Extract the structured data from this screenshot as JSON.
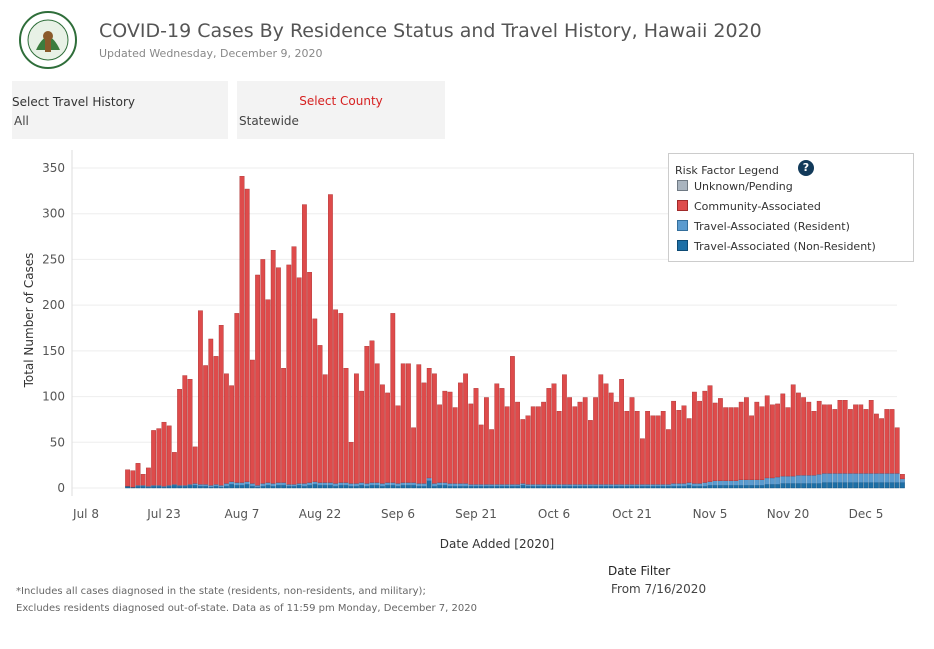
{
  "header": {
    "logo_alt": "Hawaii State Department of Health",
    "title": "COVID-19 Cases By Residence Status and Travel History, Hawaii 2020",
    "subtitle": "Updated Wednesday, December 9, 2020"
  },
  "filters": {
    "travel_label": "Select Travel History",
    "travel_value": "All",
    "county_label": "Select County",
    "county_value": "Statewide"
  },
  "legend": {
    "title": "Risk Factor Legend",
    "help": "?",
    "items": [
      {
        "label": "Unknown/Pending",
        "color": "#a9b4bf"
      },
      {
        "label": "Community-Associated",
        "color": "#de4b4b"
      },
      {
        "label": "Travel-Associated (Resident)",
        "color": "#5b9bcf"
      },
      {
        "label": "Travel-Associated (Non-Resident)",
        "color": "#1d6fa6"
      }
    ]
  },
  "date_filter": {
    "label": "Date Filter",
    "value": "From 7/16/2020"
  },
  "footnotes": [
    "*Includes all cases diagnosed in the state (residents, non-residents, and military);",
    "Excludes residents diagnosed out-of-state. Data as of 11:59 pm Monday, December 7, 2020"
  ],
  "chart_data": {
    "type": "bar",
    "stacked": true,
    "title": "",
    "xlabel": "Date Added [2020]",
    "ylabel": "Total Number of Cases",
    "ylim": [
      0,
      350
    ],
    "yticks": [
      0,
      50,
      100,
      150,
      200,
      250,
      300,
      350
    ],
    "xticks": [
      {
        "label": "Jul 8",
        "day": 0
      },
      {
        "label": "Jul 23",
        "day": 15
      },
      {
        "label": "Aug 7",
        "day": 30
      },
      {
        "label": "Aug 22",
        "day": 45
      },
      {
        "label": "Sep 6",
        "day": 60
      },
      {
        "label": "Sep 21",
        "day": 75
      },
      {
        "label": "Oct 6",
        "day": 90
      },
      {
        "label": "Oct 21",
        "day": 105
      },
      {
        "label": "Nov 5",
        "day": 120
      },
      {
        "label": "Nov 20",
        "day": 135
      },
      {
        "label": "Dec 5",
        "day": 150
      }
    ],
    "start_date": "Jul 16",
    "colors": {
      "non_resident": "#1d6fa6",
      "resident": "#5b9bcf",
      "community": "#de4b4b",
      "unknown": "#a9b4bf"
    },
    "series": [
      {
        "name": "Travel-Associated (Non-Resident)",
        "values": [
          2,
          1,
          2,
          2,
          1,
          2,
          2,
          1,
          2,
          3,
          2,
          2,
          3,
          3,
          2,
          2,
          1,
          2,
          1,
          2,
          4,
          3,
          3,
          4,
          2,
          1,
          2,
          3,
          2,
          3,
          3,
          2,
          2,
          3,
          2,
          3,
          4,
          3,
          3,
          3,
          2,
          3,
          3,
          2,
          2,
          3,
          2,
          3,
          3,
          2,
          3,
          3,
          2,
          3,
          3,
          3,
          2,
          2,
          8,
          2,
          3,
          3,
          2,
          2,
          2,
          2,
          2,
          2,
          2,
          2,
          2,
          2,
          2,
          2,
          2,
          2,
          3,
          2,
          2,
          2,
          2,
          2,
          2,
          2,
          2,
          2,
          2,
          2,
          2,
          2,
          2,
          2,
          2,
          2,
          2,
          2,
          2,
          2,
          2,
          2,
          2,
          2,
          2,
          2,
          2,
          2,
          2,
          2,
          3,
          2,
          2,
          2,
          3,
          3,
          3,
          3,
          3,
          3,
          3,
          3,
          3,
          3,
          3,
          4,
          4,
          4,
          5,
          5,
          5,
          5,
          5,
          5,
          5,
          5,
          6,
          6,
          6,
          6,
          6,
          6,
          6,
          6,
          6,
          6,
          6,
          6,
          6,
          6,
          6,
          6
        ]
      },
      {
        "name": "Travel-Associated (Resident)",
        "values": [
          0,
          0,
          1,
          1,
          1,
          1,
          1,
          1,
          1,
          1,
          1,
          1,
          1,
          2,
          2,
          2,
          2,
          2,
          2,
          3,
          3,
          3,
          3,
          3,
          3,
          2,
          3,
          3,
          3,
          3,
          3,
          2,
          2,
          2,
          3,
          3,
          3,
          3,
          3,
          3,
          3,
          3,
          3,
          3,
          3,
          3,
          3,
          3,
          3,
          3,
          3,
          3,
          3,
          3,
          3,
          3,
          3,
          3,
          3,
          3,
          3,
          3,
          3,
          3,
          3,
          3,
          2,
          2,
          2,
          2,
          2,
          2,
          2,
          2,
          2,
          2,
          2,
          2,
          2,
          2,
          2,
          2,
          2,
          2,
          2,
          2,
          2,
          2,
          2,
          2,
          2,
          2,
          2,
          2,
          2,
          2,
          2,
          2,
          2,
          2,
          2,
          2,
          2,
          2,
          2,
          3,
          3,
          3,
          3,
          3,
          3,
          4,
          4,
          5,
          5,
          5,
          5,
          5,
          6,
          6,
          6,
          6,
          6,
          7,
          7,
          8,
          8,
          8,
          8,
          9,
          9,
          9,
          9,
          10,
          10,
          10,
          10,
          10,
          10,
          10,
          10,
          10,
          10,
          10,
          10,
          10,
          10,
          10,
          10,
          4
        ]
      },
      {
        "name": "Community-Associated",
        "values": [
          18,
          18,
          24,
          12,
          20,
          60,
          62,
          70,
          65,
          35,
          105,
          120,
          115,
          40,
          190,
          130,
          160,
          140,
          175,
          120,
          105,
          185,
          335,
          320,
          135,
          230,
          245,
          200,
          255,
          235,
          125,
          240,
          260,
          225,
          305,
          230,
          178,
          150,
          118,
          315,
          190,
          185,
          125,
          45,
          120,
          100,
          150,
          155,
          130,
          108,
          98,
          185,
          85,
          130,
          130,
          60,
          130,
          110,
          120,
          120,
          85,
          100,
          100,
          83,
          110,
          120,
          88,
          105,
          65,
          95,
          60,
          110,
          105,
          85,
          140,
          90,
          70,
          75,
          85,
          85,
          90,
          105,
          110,
          80,
          120,
          95,
          85,
          90,
          95,
          70,
          95,
          120,
          110,
          100,
          90,
          115,
          80,
          95,
          80,
          50,
          80,
          75,
          75,
          80,
          60,
          90,
          80,
          85,
          70,
          100,
          90,
          100,
          105,
          85,
          90,
          80,
          80,
          80,
          85,
          90,
          70,
          85,
          80,
          90,
          80,
          80,
          90,
          75,
          100,
          90,
          85,
          80,
          70,
          80,
          75,
          75,
          70,
          80,
          80,
          70,
          75,
          75,
          70,
          80,
          65,
          60,
          70,
          70,
          50,
          5
        ]
      },
      {
        "name": "Unknown/Pending",
        "values": [
          0,
          0,
          0,
          0,
          0,
          0,
          0,
          0,
          0,
          0,
          0,
          0,
          0,
          0,
          0,
          0,
          0,
          0,
          0,
          0,
          0,
          0,
          0,
          0,
          0,
          0,
          0,
          0,
          0,
          0,
          0,
          0,
          0,
          0,
          0,
          0,
          0,
          0,
          0,
          0,
          0,
          0,
          0,
          0,
          0,
          0,
          0,
          0,
          0,
          0,
          0,
          0,
          0,
          0,
          0,
          0,
          0,
          0,
          0,
          0,
          0,
          0,
          0,
          0,
          0,
          0,
          0,
          0,
          0,
          0,
          0,
          0,
          0,
          0,
          0,
          0,
          0,
          0,
          0,
          0,
          0,
          0,
          0,
          0,
          0,
          0,
          0,
          0,
          0,
          0,
          0,
          0,
          0,
          0,
          0,
          0,
          0,
          0,
          0,
          0,
          0,
          0,
          0,
          0,
          0,
          0,
          0,
          0,
          0,
          0,
          0,
          0,
          0,
          0,
          0,
          0,
          0,
          0,
          0,
          0,
          0,
          0,
          0,
          0,
          0,
          0,
          0,
          0,
          0,
          0,
          0,
          0,
          0,
          0,
          0,
          0,
          0,
          0,
          0,
          0,
          0,
          0,
          0,
          0,
          0,
          0,
          0,
          0,
          0,
          0
        ]
      }
    ]
  }
}
